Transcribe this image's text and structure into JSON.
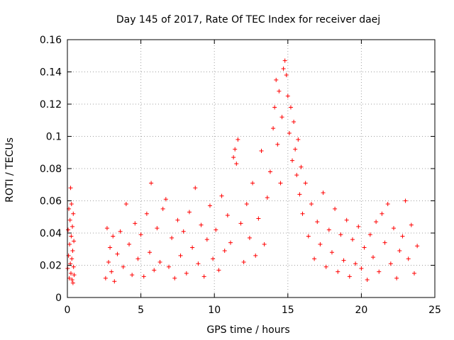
{
  "chart_data": {
    "type": "scatter",
    "title": "Day 145 of 2017, Rate Of TEC Index for receiver daej",
    "xlabel": "GPS time / hours",
    "ylabel": "ROTI / TECUs",
    "xlim": [
      0,
      25
    ],
    "ylim": [
      0,
      0.16
    ],
    "xticks": [
      0,
      5,
      10,
      15,
      20,
      25
    ],
    "xtick_labels": [
      "0",
      "5",
      "10",
      "15",
      "20",
      "25"
    ],
    "yticks": [
      0,
      0.02,
      0.04,
      0.06,
      0.08,
      0.1,
      0.12,
      0.14,
      0.16
    ],
    "ytick_labels": [
      "0",
      "0.02",
      "0.04",
      "0.06",
      "0.08",
      "0.1",
      "0.12",
      "0.14",
      "0.16"
    ],
    "grid": true,
    "marker": "+",
    "color": "#ff0000",
    "series": [
      {
        "name": "ROTI",
        "points": [
          [
            0.02,
            0.018
          ],
          [
            0.05,
            0.042
          ],
          [
            0.08,
            0.026
          ],
          [
            0.1,
            0.055
          ],
          [
            0.13,
            0.012
          ],
          [
            0.15,
            0.033
          ],
          [
            0.18,
            0.048
          ],
          [
            0.2,
            0.021
          ],
          [
            0.22,
            0.068
          ],
          [
            0.24,
            0.015
          ],
          [
            0.26,
            0.038
          ],
          [
            0.28,
            0.058
          ],
          [
            0.3,
            0.024
          ],
          [
            0.32,
            0.011
          ],
          [
            0.34,
            0.044
          ],
          [
            0.36,
            0.029
          ],
          [
            0.38,
            0.009
          ],
          [
            0.4,
            0.052
          ],
          [
            0.42,
            0.019
          ],
          [
            0.44,
            0.035
          ],
          [
            0.46,
            0.014
          ],
          [
            2.6,
            0.012
          ],
          [
            2.7,
            0.043
          ],
          [
            2.8,
            0.022
          ],
          [
            2.9,
            0.031
          ],
          [
            3.0,
            0.016
          ],
          [
            3.1,
            0.038
          ],
          [
            3.2,
            0.01
          ],
          [
            3.4,
            0.027
          ],
          [
            3.6,
            0.041
          ],
          [
            3.8,
            0.019
          ],
          [
            4.0,
            0.058
          ],
          [
            4.2,
            0.033
          ],
          [
            4.4,
            0.014
          ],
          [
            4.6,
            0.046
          ],
          [
            4.8,
            0.024
          ],
          [
            5.0,
            0.039
          ],
          [
            5.2,
            0.013
          ],
          [
            5.4,
            0.052
          ],
          [
            5.6,
            0.028
          ],
          [
            5.7,
            0.071
          ],
          [
            5.9,
            0.017
          ],
          [
            6.1,
            0.043
          ],
          [
            6.3,
            0.022
          ],
          [
            6.5,
            0.055
          ],
          [
            6.7,
            0.061
          ],
          [
            6.9,
            0.019
          ],
          [
            7.1,
            0.037
          ],
          [
            7.3,
            0.012
          ],
          [
            7.5,
            0.048
          ],
          [
            7.7,
            0.026
          ],
          [
            7.9,
            0.041
          ],
          [
            8.1,
            0.015
          ],
          [
            8.3,
            0.053
          ],
          [
            8.5,
            0.031
          ],
          [
            8.7,
            0.068
          ],
          [
            8.9,
            0.021
          ],
          [
            9.1,
            0.045
          ],
          [
            9.3,
            0.013
          ],
          [
            9.5,
            0.036
          ],
          [
            9.7,
            0.057
          ],
          [
            9.9,
            0.024
          ],
          [
            10.1,
            0.042
          ],
          [
            10.3,
            0.017
          ],
          [
            10.5,
            0.063
          ],
          [
            10.7,
            0.029
          ],
          [
            10.9,
            0.051
          ],
          [
            11.1,
            0.034
          ],
          [
            11.3,
            0.087
          ],
          [
            11.4,
            0.092
          ],
          [
            11.5,
            0.083
          ],
          [
            11.6,
            0.098
          ],
          [
            11.8,
            0.046
          ],
          [
            12.0,
            0.022
          ],
          [
            12.2,
            0.058
          ],
          [
            12.4,
            0.037
          ],
          [
            12.6,
            0.071
          ],
          [
            12.8,
            0.026
          ],
          [
            13.0,
            0.049
          ],
          [
            13.2,
            0.091
          ],
          [
            13.4,
            0.033
          ],
          [
            13.6,
            0.062
          ],
          [
            13.8,
            0.078
          ],
          [
            14.0,
            0.105
          ],
          [
            14.1,
            0.118
          ],
          [
            14.2,
            0.135
          ],
          [
            14.3,
            0.095
          ],
          [
            14.4,
            0.128
          ],
          [
            14.5,
            0.071
          ],
          [
            14.6,
            0.112
          ],
          [
            14.7,
            0.142
          ],
          [
            14.8,
            0.147
          ],
          [
            14.9,
            0.138
          ],
          [
            15.0,
            0.125
          ],
          [
            15.1,
            0.102
          ],
          [
            15.2,
            0.118
          ],
          [
            15.3,
            0.085
          ],
          [
            15.4,
            0.109
          ],
          [
            15.5,
            0.092
          ],
          [
            15.6,
            0.076
          ],
          [
            15.7,
            0.098
          ],
          [
            15.8,
            0.064
          ],
          [
            15.9,
            0.081
          ],
          [
            16.0,
            0.052
          ],
          [
            16.2,
            0.071
          ],
          [
            16.4,
            0.038
          ],
          [
            16.6,
            0.058
          ],
          [
            16.8,
            0.024
          ],
          [
            17.0,
            0.047
          ],
          [
            17.2,
            0.033
          ],
          [
            17.4,
            0.065
          ],
          [
            17.6,
            0.019
          ],
          [
            17.8,
            0.042
          ],
          [
            18.0,
            0.028
          ],
          [
            18.2,
            0.055
          ],
          [
            18.4,
            0.016
          ],
          [
            18.6,
            0.039
          ],
          [
            18.8,
            0.023
          ],
          [
            19.0,
            0.048
          ],
          [
            19.2,
            0.013
          ],
          [
            19.4,
            0.036
          ],
          [
            19.6,
            0.021
          ],
          [
            19.8,
            0.044
          ],
          [
            20.0,
            0.018
          ],
          [
            20.2,
            0.031
          ],
          [
            20.4,
            0.011
          ],
          [
            20.6,
            0.039
          ],
          [
            20.8,
            0.025
          ],
          [
            21.0,
            0.047
          ],
          [
            21.2,
            0.016
          ],
          [
            21.4,
            0.052
          ],
          [
            21.6,
            0.034
          ],
          [
            21.8,
            0.058
          ],
          [
            22.0,
            0.021
          ],
          [
            22.2,
            0.043
          ],
          [
            22.4,
            0.012
          ],
          [
            22.6,
            0.029
          ],
          [
            22.8,
            0.038
          ],
          [
            23.0,
            0.06
          ],
          [
            23.2,
            0.024
          ],
          [
            23.4,
            0.045
          ],
          [
            23.6,
            0.015
          ],
          [
            23.8,
            0.032
          ]
        ]
      }
    ]
  }
}
